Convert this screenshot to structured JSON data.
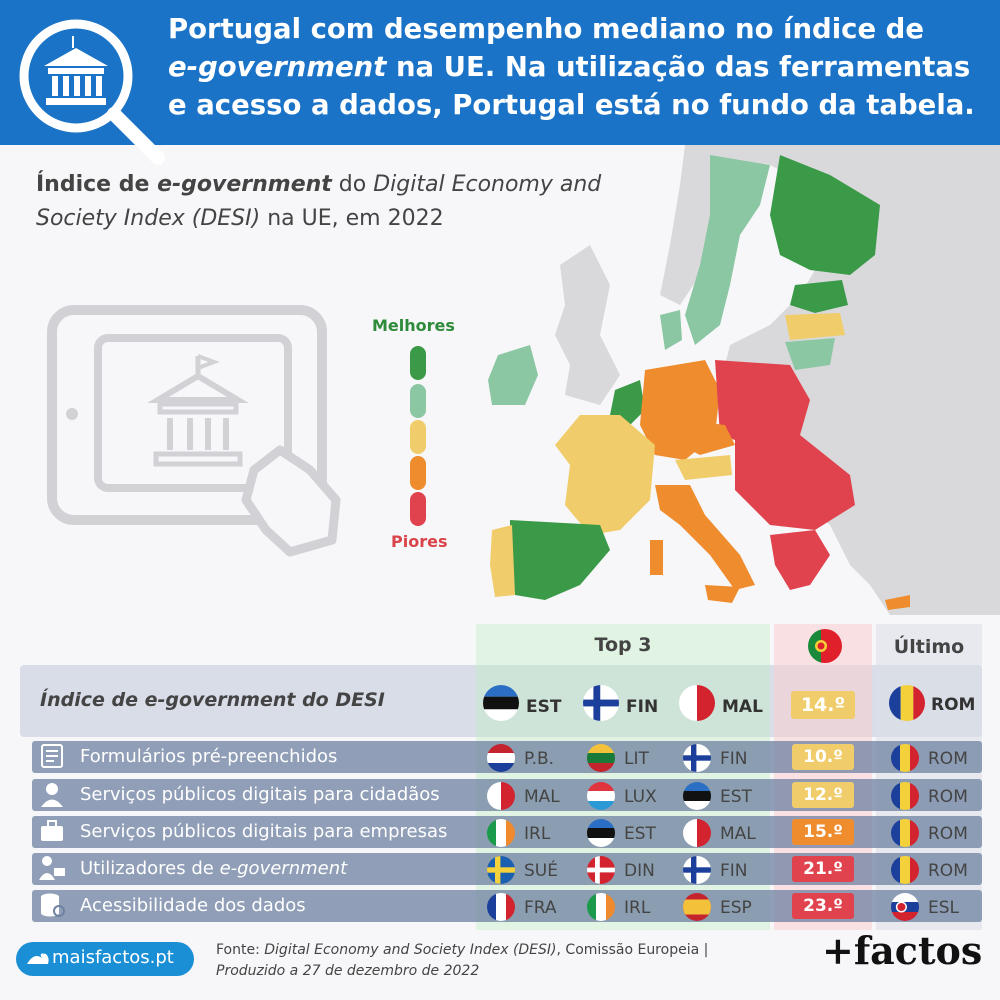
{
  "header": {
    "title_part1": "Portugal com desempenho mediano no índice de",
    "title_italic": "e-government",
    "title_part2": "na UE. Na utilização das ferramentas e acesso a dados, Portugal está no fundo da tabela."
  },
  "subtitle": {
    "bold_plain": "Índice de ",
    "bold_italic": "e-government",
    "plain1": " do ",
    "italic1": "Digital Economy and Society Index (DESI)",
    "plain2": " na UE, em 2022"
  },
  "legend": {
    "best": "Melhores",
    "worst": "Piores",
    "colors": [
      "#3b9a48",
      "#8cc7a3",
      "#f0cc6a",
      "#ee8c2e",
      "#e0434d"
    ]
  },
  "table": {
    "header_top3": "Top 3",
    "header_last": "Último",
    "main": {
      "label": "Índice de e-government do DESI",
      "top3": [
        {
          "code": "EST",
          "flag": "estonia"
        },
        {
          "code": "FIN",
          "flag": "finland"
        },
        {
          "code": "MAL",
          "flag": "malta"
        }
      ],
      "portugal": "14.º",
      "portugal_color": "#f0cc6a",
      "last": {
        "code": "ROM",
        "flag": "romania"
      }
    },
    "rows": [
      {
        "label": "Formulários pré-preenchidos",
        "icon": "form-icon",
        "top3": [
          {
            "code": "P.B.",
            "flag": "netherlands"
          },
          {
            "code": "LIT",
            "flag": "lithuania"
          },
          {
            "code": "FIN",
            "flag": "finland"
          }
        ],
        "portugal": "10.º",
        "portugal_color": "#f0cc6a",
        "last": {
          "code": "ROM",
          "flag": "romania"
        }
      },
      {
        "label": "Serviços públicos digitais para cidadãos",
        "icon": "citizen-icon",
        "top3": [
          {
            "code": "MAL",
            "flag": "malta"
          },
          {
            "code": "LUX",
            "flag": "luxembourg"
          },
          {
            "code": "EST",
            "flag": "estonia"
          }
        ],
        "portugal": "12.º",
        "portugal_color": "#f0cc6a",
        "last": {
          "code": "ROM",
          "flag": "romania"
        }
      },
      {
        "label": "Serviços públicos digitais para empresas",
        "icon": "briefcase-icon",
        "top3": [
          {
            "code": "IRL",
            "flag": "ireland"
          },
          {
            "code": "EST",
            "flag": "estonia"
          },
          {
            "code": "MAL",
            "flag": "malta"
          }
        ],
        "portugal": "15.º",
        "portugal_color": "#ee8c2e",
        "last": {
          "code": "ROM",
          "flag": "romania"
        }
      },
      {
        "label_plain": "Utilizadores de ",
        "label_italic": "e-government",
        "icon": "user-computer-icon",
        "top3": [
          {
            "code": "SUÉ",
            "flag": "sweden"
          },
          {
            "code": "DIN",
            "flag": "denmark"
          },
          {
            "code": "FIN",
            "flag": "finland"
          }
        ],
        "portugal": "21.º",
        "portugal_color": "#e0434d",
        "last": {
          "code": "ROM",
          "flag": "romania"
        }
      },
      {
        "label": "Acessibilidade dos dados",
        "icon": "database-icon",
        "top3": [
          {
            "code": "FRA",
            "flag": "france"
          },
          {
            "code": "IRL",
            "flag": "ireland"
          },
          {
            "code": "ESP",
            "flag": "spain"
          }
        ],
        "portugal": "23.º",
        "portugal_color": "#e0434d",
        "last": {
          "code": "ESL",
          "flag": "slovakia"
        }
      }
    ]
  },
  "footer": {
    "site": "maisfactos.pt",
    "source_plain1": "Fonte: ",
    "source_italic": "Digital Economy and Society Index (DESI)",
    "source_plain2": ", Comissão Europeia |",
    "produced": "Produzido a 27 de dezembro de 2022",
    "brand": "+factos"
  }
}
